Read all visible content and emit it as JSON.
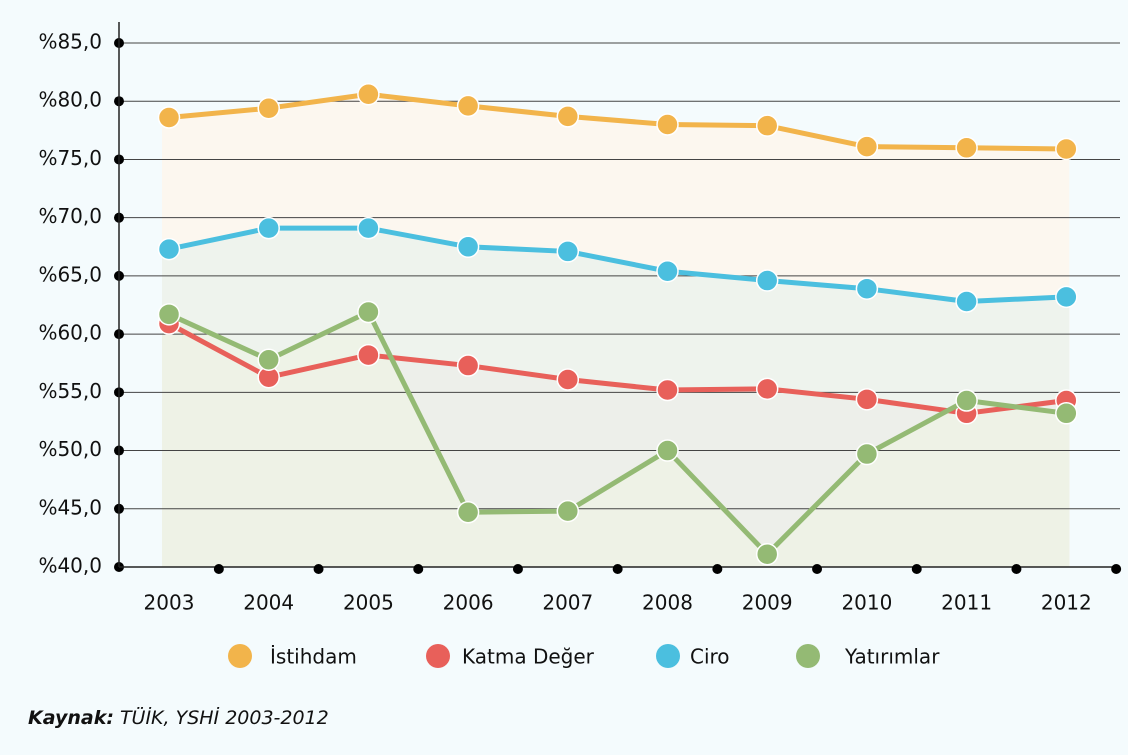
{
  "chart_data": {
    "type": "line",
    "categories": [
      "2003",
      "2004",
      "2005",
      "2006",
      "2007",
      "2008",
      "2009",
      "2010",
      "2011",
      "2012"
    ],
    "series": [
      {
        "name": "İstihdam",
        "color": "#f2b44b",
        "fill": "#fff6e9",
        "values": [
          78.6,
          79.4,
          80.6,
          79.6,
          78.7,
          78.0,
          77.9,
          76.1,
          76.0,
          75.9
        ]
      },
      {
        "name": "Katma Değer",
        "color": "#e8605a",
        "fill": "#f4e1dc",
        "values": [
          60.9,
          56.3,
          58.2,
          57.3,
          56.1,
          55.2,
          55.3,
          54.4,
          53.2,
          54.3
        ]
      },
      {
        "name": "Ciro",
        "color": "#4bbfdf",
        "fill": "#e9f2ec",
        "values": [
          67.3,
          69.1,
          69.1,
          67.5,
          67.1,
          65.4,
          64.6,
          63.9,
          62.8,
          63.2
        ]
      },
      {
        "name": "Yatırımlar",
        "color": "#94ba74",
        "fill": "#eef3e4",
        "values": [
          61.7,
          57.8,
          61.9,
          44.7,
          44.8,
          50.0,
          41.1,
          49.7,
          54.3,
          53.2
        ]
      }
    ],
    "ylim": [
      40,
      85
    ],
    "yticks": [
      {
        "value": 40,
        "label": "%40,0"
      },
      {
        "value": 45,
        "label": "%45,0"
      },
      {
        "value": 50,
        "label": "%50,0"
      },
      {
        "value": 55,
        "label": "%55,0"
      },
      {
        "value": 60,
        "label": "%60,0"
      },
      {
        "value": 65,
        "label": "%65,0"
      },
      {
        "value": 70,
        "label": "%70,0"
      },
      {
        "value": 75,
        "label": "%75,0"
      },
      {
        "value": 80,
        "label": "%80,0"
      },
      {
        "value": 85,
        "label": "%85,0"
      }
    ],
    "grid": true,
    "source_label": "Kaynak:",
    "source_text": "TÜİK, YSHİ 2003-2012"
  }
}
